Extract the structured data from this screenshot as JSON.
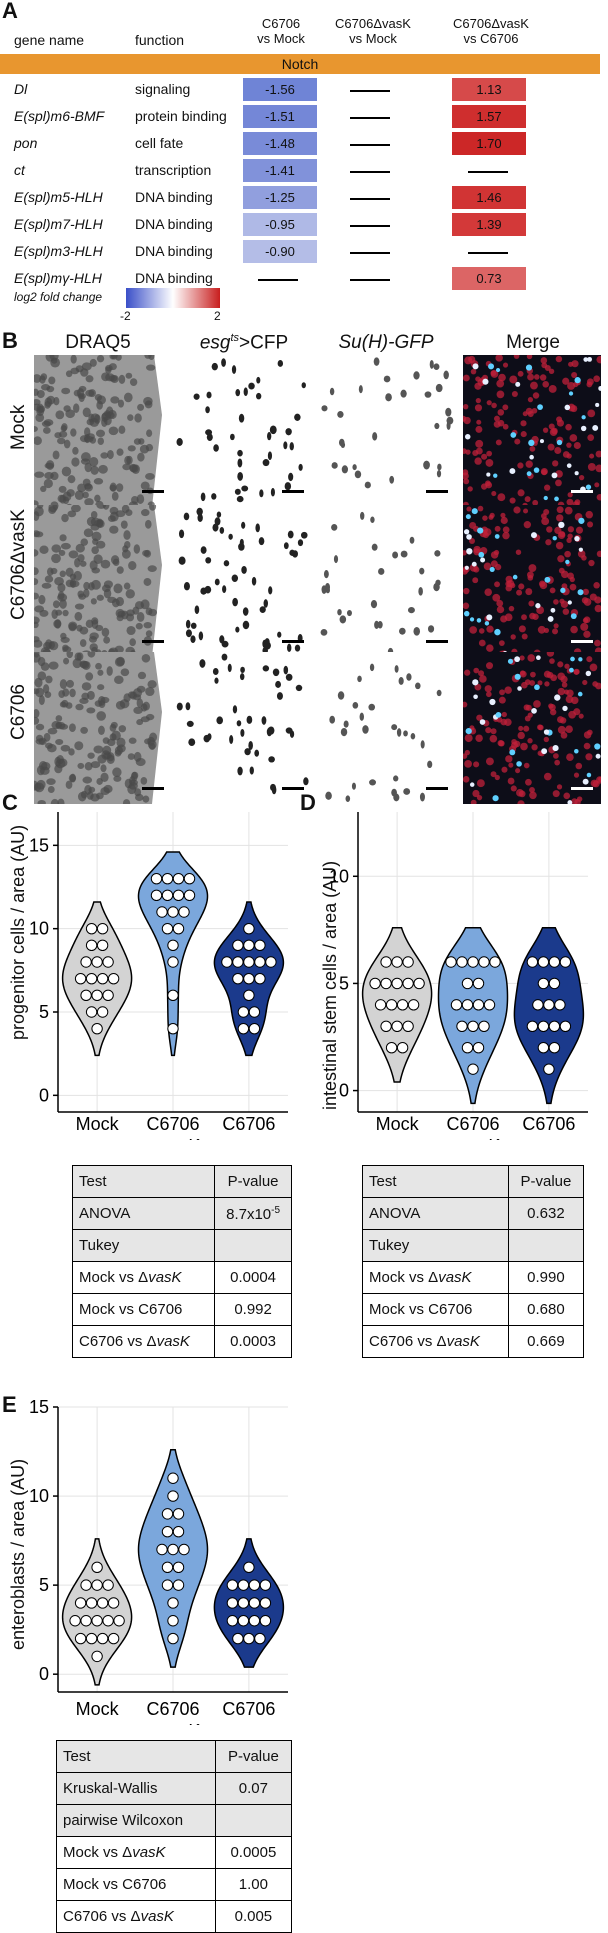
{
  "panelA": {
    "letter": "A",
    "header": {
      "gene": "gene name",
      "function": "function",
      "col1": [
        "C6706",
        "vs Mock"
      ],
      "col2": [
        "C6706ΔvasK",
        "vs Mock"
      ],
      "col3": [
        "C6706ΔvasK",
        "vs C6706"
      ]
    },
    "section": "Notch",
    "rows": [
      {
        "gene": "Dl",
        "function": "signaling",
        "c1": "-1.56",
        "c1color": "#6f84d6",
        "c2": "",
        "c3": "1.13",
        "c3color": "#d64a4a"
      },
      {
        "gene": "E(spl)m6-BMF",
        "function": "protein binding",
        "c1": "-1.51",
        "c1color": "#7487d7",
        "c2": "",
        "c3": "1.57",
        "c3color": "#cf2e2e"
      },
      {
        "gene": "pon",
        "function": "cell fate",
        "c1": "-1.48",
        "c1color": "#798bd8",
        "c2": "",
        "c3": "1.70",
        "c3color": "#cc2727"
      },
      {
        "gene": "ct",
        "function": "transcription",
        "c1": "-1.41",
        "c1color": "#8192da",
        "c2": "",
        "c3": "",
        "c3color": ""
      },
      {
        "gene": "E(spl)m5-HLH",
        "function": "DNA binding",
        "c1": "-1.25",
        "c1color": "#919fde",
        "c2": "",
        "c3": "1.46",
        "c3color": "#d13434"
      },
      {
        "gene": "E(spl)m7-HLH",
        "function": "DNA binding",
        "c1": "-0.95",
        "c1color": "#afb9e6",
        "c2": "",
        "c3": "1.39",
        "c3color": "#d33939"
      },
      {
        "gene": "E(spl)m3-HLH",
        "function": "DNA binding",
        "c1": "-0.90",
        "c1color": "#b4bde7",
        "c2": "",
        "c3": "",
        "c3color": ""
      },
      {
        "gene": "E(spl)mγ-HLH",
        "function": "DNA binding",
        "c1": "",
        "c1color": "",
        "c2": "",
        "c3": "0.73",
        "c3color": "#dc6565"
      }
    ],
    "legend": {
      "label": "log2 fold change",
      "min": "-2",
      "max": "2",
      "low_color": "#3a4fc8",
      "mid_color": "#ffffff",
      "high_color": "#c81e1e"
    }
  },
  "panelB": {
    "letter": "B",
    "columns": [
      "DRAQ5",
      "esg",
      "ts",
      ">CFP",
      "Su(H)-GFP",
      "Merge"
    ],
    "rows": [
      "Mock",
      "C6706ΔvasK",
      "C6706"
    ]
  },
  "panelC": {
    "letter": "C",
    "ylabel": "progenitor  cells / area (AU)",
    "yticks": [
      "0",
      "5",
      "10",
      "15"
    ],
    "x": [
      "Mock",
      "C6706",
      "C6706"
    ],
    "x_sub": "ΔvasK",
    "table": [
      {
        "test": "Test",
        "p": "P-value",
        "gray": true
      },
      {
        "test": "ANOVA",
        "p": "8.7x10",
        "sup": "-5",
        "gray": true
      },
      {
        "test": "Tukey",
        "p": "",
        "gray": true
      },
      {
        "test": "Mock vs ΔvasK",
        "p": "0.0004",
        "gray": false
      },
      {
        "test": "Mock vs C6706",
        "p": "0.992",
        "gray": false
      },
      {
        "test": "C6706 vs ΔvasK",
        "p": "0.0003",
        "gray": false
      }
    ]
  },
  "panelD": {
    "letter": "D",
    "ylabel": "intestinal stem cells / area (AU)",
    "yticks": [
      "0",
      "5",
      "10"
    ],
    "x": [
      "Mock",
      "C6706",
      "C6706"
    ],
    "x_sub": "ΔvasK",
    "table": [
      {
        "test": "Test",
        "p": "P-value",
        "gray": true
      },
      {
        "test": "ANOVA",
        "p": "0.632",
        "gray": true
      },
      {
        "test": "Tukey",
        "p": "",
        "gray": true
      },
      {
        "test": "Mock vs ΔvasK",
        "p": "0.990",
        "gray": false
      },
      {
        "test": "Mock vs C6706",
        "p": "0.680",
        "gray": false
      },
      {
        "test": "C6706 vs ΔvasK",
        "p": "0.669",
        "gray": false
      }
    ]
  },
  "panelE": {
    "letter": "E",
    "ylabel": "enteroblasts / area (AU)",
    "yticks": [
      "0",
      "5",
      "10",
      "15"
    ],
    "x": [
      "Mock",
      "C6706",
      "C6706"
    ],
    "x_sub": "ΔvasK",
    "table": [
      {
        "test": "Test",
        "p": "P-value",
        "gray": true
      },
      {
        "test": "Kruskal-Wallis",
        "p": "0.07",
        "gray": true
      },
      {
        "test": "pairwise Wilcoxon",
        "p": "",
        "gray": true
      },
      {
        "test": "Mock vs ΔvasK",
        "p": "0.0005",
        "gray": false
      },
      {
        "test": "Mock vs C6706",
        "p": "1.00",
        "gray": false
      },
      {
        "test": "C6706 vs ΔvasK",
        "p": "0.005",
        "gray": false
      }
    ]
  },
  "chart_data": [
    {
      "type": "violin",
      "panel": "C",
      "ylabel": "progenitor  cells / area (AU)",
      "ylim": [
        -1,
        17
      ],
      "categories": [
        "Mock",
        "C6706 ΔvasK",
        "C6706"
      ],
      "colors": [
        "#d3d3d3",
        "#7ba7dc",
        "#1b3a8c"
      ],
      "series": [
        {
          "values": [
            4,
            5,
            5,
            6,
            6,
            6,
            7,
            7,
            7,
            7,
            8,
            8,
            8,
            9,
            9,
            10,
            10
          ]
        },
        {
          "values": [
            4,
            6,
            8,
            9,
            10,
            10,
            11,
            11,
            11,
            12,
            12,
            12,
            12,
            13,
            13,
            13,
            13
          ]
        },
        {
          "values": [
            4,
            4,
            5,
            5,
            6,
            7,
            7,
            7,
            8,
            8,
            8,
            8,
            8,
            9,
            9,
            9,
            10
          ]
        }
      ]
    },
    {
      "type": "violin",
      "panel": "D",
      "ylabel": "intestinal stem cells / area (AU)",
      "ylim": [
        -1,
        13
      ],
      "categories": [
        "Mock",
        "C6706 ΔvasK",
        "C6706"
      ],
      "colors": [
        "#d3d3d3",
        "#7ba7dc",
        "#1b3a8c"
      ],
      "series": [
        {
          "values": [
            2,
            2,
            3,
            3,
            3,
            4,
            4,
            4,
            4,
            5,
            5,
            5,
            5,
            5,
            6,
            6,
            6
          ]
        },
        {
          "values": [
            1,
            2,
            2,
            3,
            3,
            3,
            4,
            4,
            4,
            4,
            5,
            5,
            6,
            6,
            6,
            6,
            6
          ]
        },
        {
          "values": [
            1,
            2,
            2,
            3,
            3,
            3,
            3,
            4,
            4,
            4,
            5,
            5,
            6,
            6,
            6,
            6
          ]
        }
      ]
    },
    {
      "type": "violin",
      "panel": "E",
      "ylabel": "enteroblasts / area (AU)",
      "ylim": [
        -1,
        15
      ],
      "categories": [
        "Mock",
        "C6706 ΔvasK",
        "C6706"
      ],
      "colors": [
        "#d3d3d3",
        "#7ba7dc",
        "#1b3a8c"
      ],
      "series": [
        {
          "values": [
            1,
            2,
            2,
            2,
            2,
            3,
            3,
            3,
            3,
            3,
            4,
            4,
            4,
            4,
            5,
            5,
            5,
            6
          ]
        },
        {
          "values": [
            2,
            3,
            4,
            5,
            5,
            6,
            6,
            7,
            7,
            7,
            8,
            8,
            9,
            9,
            10,
            11
          ]
        },
        {
          "values": [
            2,
            2,
            2,
            3,
            3,
            3,
            3,
            4,
            4,
            4,
            4,
            5,
            5,
            5,
            5,
            6
          ]
        }
      ]
    }
  ]
}
